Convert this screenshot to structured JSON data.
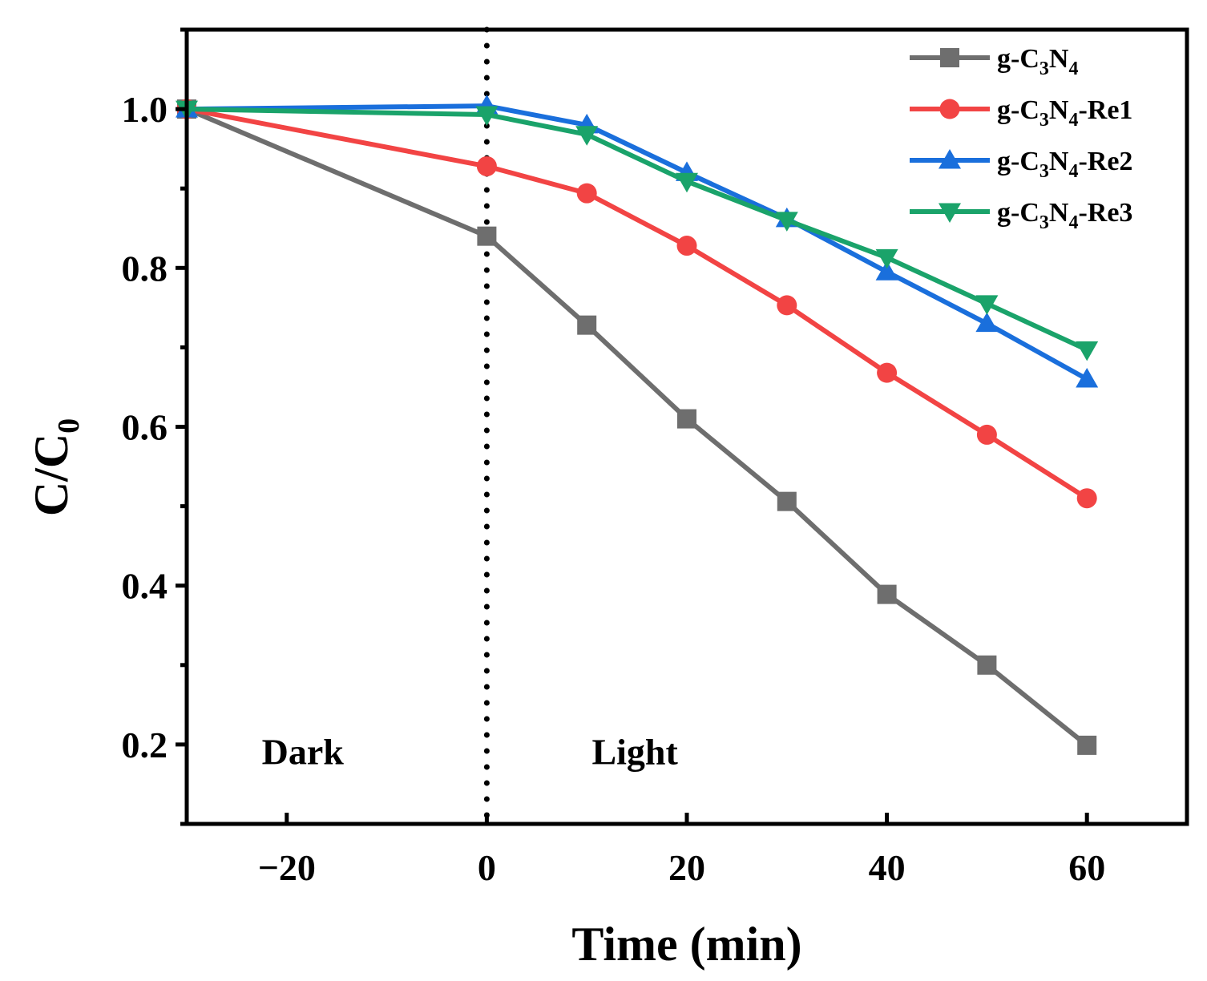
{
  "chart_data": {
    "type": "line",
    "title": "",
    "xlabel": "Time (min)",
    "ylabel": {
      "main": "C/C",
      "sub": "0"
    },
    "xlim": [
      -30,
      70
    ],
    "ylim": [
      0.1,
      1.1
    ],
    "xticks": [
      -20,
      0,
      20,
      40,
      60
    ],
    "xtick_labels": [
      "−20",
      "0",
      "20",
      "40",
      "60"
    ],
    "yticks": [
      0.2,
      0.4,
      0.6,
      0.8,
      1.0
    ],
    "ytick_labels": [
      "0.2",
      "0.4",
      "0.6",
      "0.8",
      "1.0"
    ],
    "y_minor_ticks": [
      0.1,
      0.3,
      0.5,
      0.7,
      0.9,
      1.1
    ],
    "grid": false,
    "legend_position": "top-right",
    "x": [
      -30,
      0,
      10,
      20,
      30,
      40,
      50,
      60
    ],
    "series": [
      {
        "name": "g-C3N4",
        "label_parts": [
          "g-C",
          "3",
          "N",
          "4",
          ""
        ],
        "color": "#6e6e6e",
        "marker": "square",
        "values": [
          1.0,
          0.84,
          0.728,
          0.61,
          0.506,
          0.389,
          0.3,
          0.199
        ]
      },
      {
        "name": "g-C3N4-Re1",
        "label_parts": [
          "g-C",
          "3",
          "N",
          "4",
          "-Re1"
        ],
        "color": "#f24444",
        "marker": "circle",
        "values": [
          1.0,
          0.928,
          0.894,
          0.828,
          0.753,
          0.668,
          0.59,
          0.51
        ]
      },
      {
        "name": "g-C3N4-Re2",
        "label_parts": [
          "g-C",
          "3",
          "N",
          "4",
          "-Re2"
        ],
        "color": "#1a6fdc",
        "marker": "triangle-up",
        "values": [
          1.0,
          1.004,
          0.98,
          0.92,
          0.862,
          0.795,
          0.73,
          0.66
        ]
      },
      {
        "name": "g-C3N4-Re3",
        "label_parts": [
          "g-C",
          "3",
          "N",
          "4",
          "-Re3"
        ],
        "color": "#1aa36a",
        "marker": "triangle-down",
        "values": [
          1.0,
          0.993,
          0.968,
          0.909,
          0.86,
          0.813,
          0.755,
          0.697
        ]
      }
    ],
    "annotations": [
      {
        "text": "Dark",
        "x": -22.5,
        "y": 0.175
      },
      {
        "text": "Light",
        "x": 10.5,
        "y": 0.175
      }
    ],
    "vline": {
      "x": 0,
      "style": "dotted"
    }
  }
}
